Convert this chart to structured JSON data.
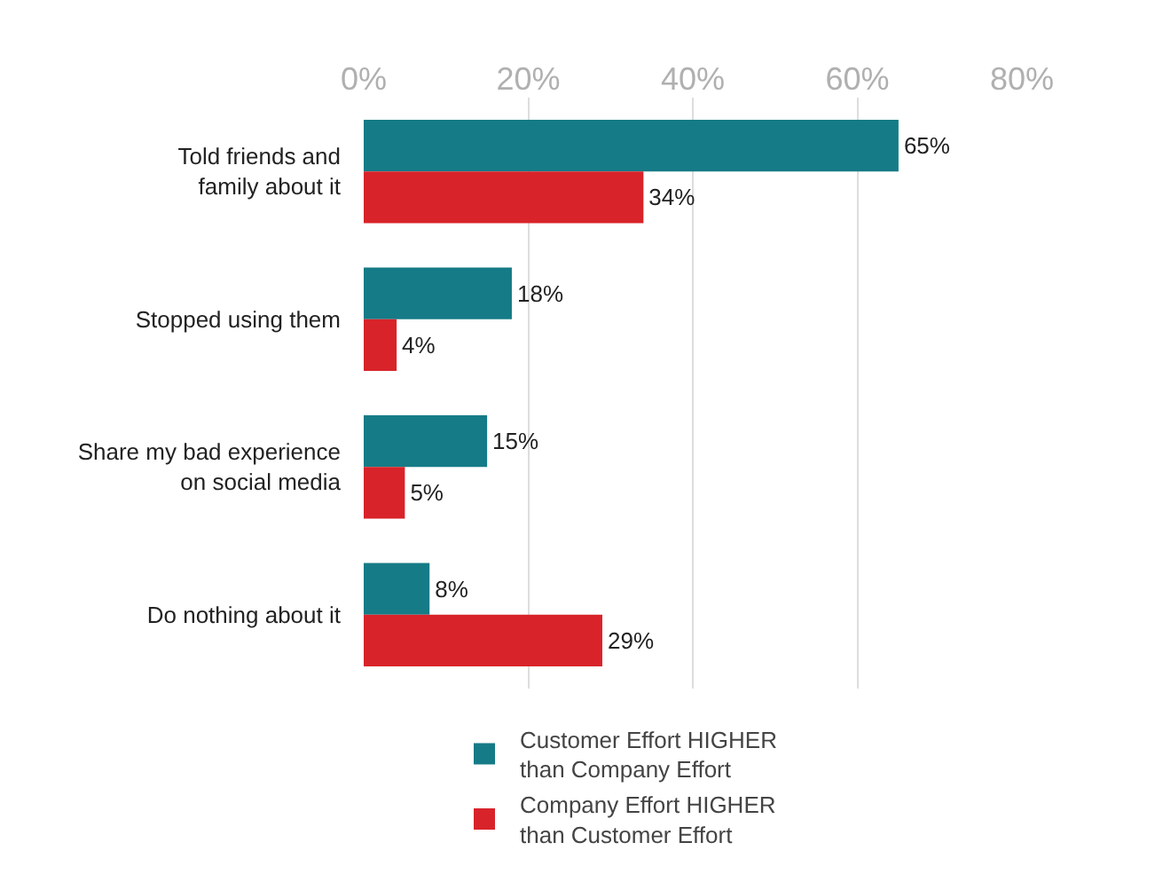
{
  "chart_data": {
    "type": "bar",
    "orientation": "horizontal",
    "categories": [
      "Told friends and\nfamily about it",
      "Stopped using them",
      "Share my bad experience\non social media",
      "Do nothing about it"
    ],
    "series": [
      {
        "name": "Customer Effort HIGHER\nthan Company Effort",
        "color": "#157b86",
        "values": [
          65,
          18,
          15,
          8
        ],
        "value_labels": [
          "65%",
          "18%",
          "15%",
          "8%"
        ]
      },
      {
        "name": "Company Effort HIGHER\nthan Customer Effort",
        "color": "#d8232a",
        "values": [
          34,
          4,
          5,
          29
        ],
        "value_labels": [
          "34%",
          "4%",
          "5%",
          "29%"
        ]
      }
    ],
    "xlim": [
      0,
      80
    ],
    "xticks": [
      {
        "value": 0,
        "label": "0%"
      },
      {
        "value": 20,
        "label": "20%"
      },
      {
        "value": 40,
        "label": "40%"
      },
      {
        "value": 60,
        "label": "60%"
      },
      {
        "value": 80,
        "label": "80%"
      }
    ],
    "grid": "x",
    "legend": "bottom"
  }
}
